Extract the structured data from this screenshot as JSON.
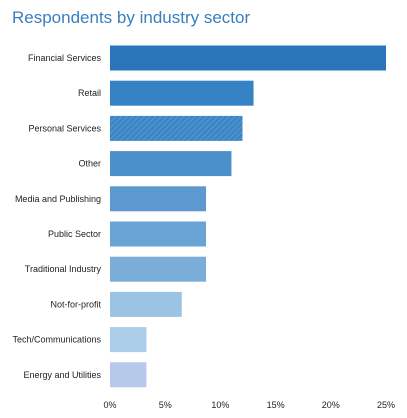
{
  "chart_data": {
    "type": "bar",
    "orientation": "horizontal",
    "title": "Respondents by industry sector",
    "categories": [
      "Financial Services",
      "Retail",
      "Personal Services",
      "Other",
      "Media and Publishing",
      "Public Sector",
      "Traditional Industry",
      "Not-for-profit",
      "Tech/Communications",
      "Energy and Utilities"
    ],
    "values": [
      25.0,
      13.0,
      12.0,
      11.0,
      8.7,
      8.7,
      8.7,
      6.5,
      3.3,
      3.3
    ],
    "xlim": [
      0,
      25
    ],
    "xticks": [
      0,
      5,
      10,
      15,
      20,
      25
    ],
    "xtick_labels": [
      "0%",
      "5%",
      "10%",
      "15%",
      "20%",
      "25%"
    ],
    "grid": false,
    "legend": "none",
    "bar_colors": [
      "#2a75b9",
      "#3582c4",
      "#3c86c6",
      "#4a8fca",
      "#5b99cf",
      "#6aa3d5",
      "#7badd9",
      "#9bc4e4",
      "#abcdea",
      "#b7c9eb"
    ],
    "striped_categories": [
      "Personal Services"
    ]
  }
}
